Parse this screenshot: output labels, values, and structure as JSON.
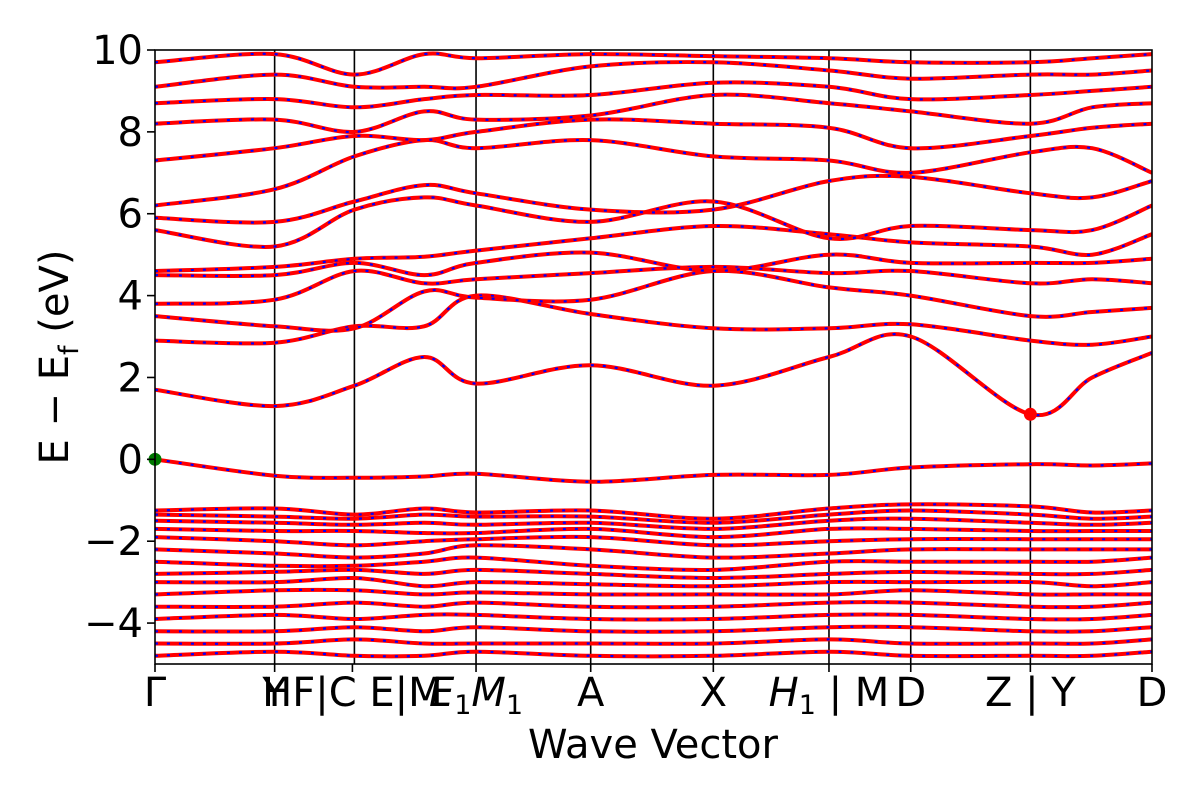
{
  "chart_data": {
    "type": "line",
    "title": "",
    "xlabel": "Wave Vector",
    "ylabel": "E − E",
    "ylabel_sub": "f",
    "ylabel_unit": " (eV)",
    "ylim": [
      -5,
      10
    ],
    "yticks": [
      -4,
      -2,
      0,
      2,
      4,
      6,
      8,
      10
    ],
    "ytick_labels": [
      "−4",
      "−2",
      "0",
      "2",
      "4",
      "6",
      "8",
      "10"
    ],
    "grid": false,
    "legend": "none",
    "colors": {
      "band": "#ff0000",
      "band_dash": "#0000ff",
      "vbm": "#007a00",
      "cbm": "#ff0000"
    },
    "kpoint_ticks": [
      {
        "pos": 0.0,
        "label": "Γ"
      },
      {
        "pos": 0.12,
        "label": "Y"
      },
      {
        "pos": 0.2,
        "label": "H|"
      },
      {
        "pos": 0.205,
        "label": "H"
      },
      {
        "pos": 0.205,
        "label": "C"
      },
      {
        "pos": 0.276,
        "label": "E"
      },
      {
        "pos": 0.322,
        "label": "M"
      },
      {
        "pos": 0.322,
        "label": "E"
      },
      {
        "pos": 0.362,
        "label": "M"
      },
      {
        "pos": 0.437,
        "label": "A"
      },
      {
        "pos": 0.56,
        "label": "X"
      },
      {
        "pos": 0.676,
        "label": "H"
      },
      {
        "pos": 0.676,
        "label": "|"
      },
      {
        "pos": 0.758,
        "label": "M"
      },
      {
        "pos": 0.758,
        "label": "D"
      },
      {
        "pos": 0.878,
        "label": "Z"
      },
      {
        "pos": 0.878,
        "label": "|"
      },
      {
        "pos": 0.878,
        "label": "Y"
      },
      {
        "pos": 1.0,
        "label": "D"
      }
    ],
    "x_tick_text": [
      {
        "pos": 0.0,
        "text": "Γ"
      },
      {
        "pos": 0.12,
        "text": "Y"
      },
      {
        "pos": 0.198,
        "text": "HF|C E|M"
      },
      {
        "pos": 0.322,
        "text": "E",
        "sub": "1",
        "italic": true,
        "sub_label": "M",
        "sub_label_sub": "1"
      },
      {
        "pos": 0.437,
        "text": "A"
      },
      {
        "pos": 0.56,
        "text": "X"
      },
      {
        "pos": 0.676,
        "text": "H",
        "sub": "1",
        "italic": true,
        "suffix": " | M"
      },
      {
        "pos": 0.758,
        "text": "D"
      },
      {
        "pos": 0.878,
        "text": "Z | Y"
      },
      {
        "pos": 1.0,
        "text": "D"
      }
    ],
    "vlines": [
      0.12,
      0.2,
      0.322,
      0.437,
      0.56,
      0.676,
      0.758,
      0.878
    ],
    "markers": [
      {
        "name": "VBM",
        "x": 0.0,
        "y": 0.0,
        "color": "#007a00"
      },
      {
        "name": "CBM",
        "x": 0.878,
        "y": 1.1,
        "color": "#ff0000"
      }
    ],
    "series": [
      {
        "y": [
          0.0,
          -0.4,
          -0.45,
          -0.42,
          -0.35,
          -0.55,
          -0.38,
          -0.38,
          -0.2,
          -0.12,
          -0.15,
          -0.1
        ]
      },
      {
        "y": [
          1.7,
          1.3,
          1.8,
          2.5,
          1.85,
          2.3,
          1.8,
          2.5,
          3.0,
          1.1,
          2.0,
          2.6
        ]
      },
      {
        "y": [
          2.9,
          2.85,
          3.25,
          3.25,
          4.0,
          3.55,
          3.2,
          3.2,
          3.3,
          2.9,
          2.8,
          3.0
        ]
      },
      {
        "y": [
          3.5,
          3.25,
          3.2,
          4.1,
          3.95,
          3.9,
          4.6,
          4.2,
          4.0,
          3.5,
          3.6,
          3.7
        ]
      },
      {
        "y": [
          3.8,
          3.9,
          4.6,
          4.3,
          4.4,
          4.55,
          4.7,
          4.55,
          4.6,
          4.3,
          4.4,
          4.3
        ]
      },
      {
        "y": [
          4.5,
          4.5,
          4.8,
          4.5,
          4.8,
          5.05,
          4.6,
          5.0,
          4.8,
          4.8,
          4.8,
          4.9
        ]
      },
      {
        "y": [
          4.6,
          4.7,
          4.9,
          4.95,
          5.1,
          5.4,
          5.7,
          5.5,
          5.3,
          5.2,
          5.0,
          5.5
        ]
      },
      {
        "y": [
          5.6,
          5.2,
          6.1,
          6.4,
          6.2,
          5.8,
          6.3,
          5.4,
          5.7,
          5.6,
          5.6,
          6.2
        ]
      },
      {
        "y": [
          5.9,
          5.8,
          6.3,
          6.7,
          6.5,
          6.1,
          6.1,
          6.8,
          6.9,
          6.5,
          6.4,
          6.8
        ]
      },
      {
        "y": [
          6.2,
          6.6,
          7.4,
          7.8,
          7.6,
          7.8,
          7.4,
          7.3,
          7.0,
          7.5,
          7.6,
          7.0
        ]
      },
      {
        "y": [
          7.3,
          7.6,
          7.9,
          7.8,
          8.0,
          8.3,
          8.2,
          8.1,
          7.6,
          7.9,
          8.1,
          8.2
        ]
      },
      {
        "y": [
          8.2,
          8.3,
          8.0,
          8.5,
          8.3,
          8.4,
          8.9,
          8.7,
          8.5,
          8.2,
          8.6,
          8.7
        ]
      },
      {
        "y": [
          8.7,
          8.8,
          8.6,
          8.8,
          8.9,
          8.9,
          9.2,
          9.1,
          8.8,
          8.9,
          9.0,
          9.1
        ]
      },
      {
        "y": [
          9.1,
          9.4,
          9.1,
          9.1,
          9.1,
          9.6,
          9.7,
          9.5,
          9.3,
          9.4,
          9.4,
          9.5
        ]
      },
      {
        "y": [
          9.7,
          9.9,
          9.4,
          9.9,
          9.8,
          9.9,
          9.85,
          9.8,
          9.7,
          9.7,
          9.8,
          9.9
        ]
      },
      {
        "y": [
          -1.25,
          -1.2,
          -1.35,
          -1.2,
          -1.3,
          -1.25,
          -1.45,
          -1.2,
          -1.1,
          -1.15,
          -1.3,
          -1.25
        ]
      },
      {
        "y": [
          -1.35,
          -1.4,
          -1.45,
          -1.35,
          -1.4,
          -1.4,
          -1.55,
          -1.35,
          -1.25,
          -1.35,
          -1.45,
          -1.4
        ]
      },
      {
        "y": [
          -1.5,
          -1.55,
          -1.6,
          -1.55,
          -1.6,
          -1.55,
          -1.7,
          -1.5,
          -1.45,
          -1.55,
          -1.6,
          -1.55
        ]
      },
      {
        "y": [
          -1.7,
          -1.75,
          -1.75,
          -1.8,
          -1.8,
          -1.7,
          -1.9,
          -1.7,
          -1.7,
          -1.75,
          -1.75,
          -1.75
        ]
      },
      {
        "y": [
          -1.9,
          -2.0,
          -2.1,
          -2.0,
          -1.95,
          -1.9,
          -2.1,
          -2.0,
          -1.95,
          -1.95,
          -1.95,
          -1.95
        ]
      },
      {
        "y": [
          -2.2,
          -2.3,
          -2.4,
          -2.3,
          -2.1,
          -2.2,
          -2.4,
          -2.3,
          -2.2,
          -2.2,
          -2.2,
          -2.2
        ]
      },
      {
        "y": [
          -2.5,
          -2.6,
          -2.6,
          -2.5,
          -2.4,
          -2.6,
          -2.7,
          -2.5,
          -2.5,
          -2.5,
          -2.5,
          -2.4
        ]
      },
      {
        "y": [
          -2.8,
          -2.75,
          -2.7,
          -2.8,
          -2.7,
          -2.8,
          -2.9,
          -2.8,
          -2.75,
          -2.8,
          -2.8,
          -2.7
        ]
      },
      {
        "y": [
          -3.0,
          -3.0,
          -2.9,
          -3.1,
          -3.0,
          -3.05,
          -3.1,
          -3.0,
          -3.0,
          -3.0,
          -3.1,
          -3.0
        ]
      },
      {
        "y": [
          -3.3,
          -3.2,
          -3.2,
          -3.3,
          -3.25,
          -3.3,
          -3.3,
          -3.3,
          -3.2,
          -3.3,
          -3.3,
          -3.3
        ]
      },
      {
        "y": [
          -3.6,
          -3.6,
          -3.5,
          -3.6,
          -3.5,
          -3.6,
          -3.6,
          -3.5,
          -3.5,
          -3.6,
          -3.6,
          -3.5
        ]
      },
      {
        "y": [
          -3.9,
          -3.8,
          -3.9,
          -3.8,
          -3.8,
          -3.9,
          -3.9,
          -3.8,
          -3.8,
          -3.9,
          -3.9,
          -3.8
        ]
      },
      {
        "y": [
          -4.2,
          -4.2,
          -4.1,
          -4.2,
          -4.1,
          -4.2,
          -4.2,
          -4.1,
          -4.1,
          -4.2,
          -4.2,
          -4.1
        ]
      },
      {
        "y": [
          -4.5,
          -4.5,
          -4.4,
          -4.5,
          -4.5,
          -4.5,
          -4.5,
          -4.4,
          -4.5,
          -4.5,
          -4.5,
          -4.4
        ]
      },
      {
        "y": [
          -4.8,
          -4.7,
          -4.8,
          -4.8,
          -4.7,
          -4.8,
          -4.8,
          -4.7,
          -4.8,
          -4.8,
          -4.8,
          -4.7
        ]
      }
    ],
    "series_x": [
      0.0,
      0.12,
      0.2,
      0.27,
      0.322,
      0.437,
      0.56,
      0.676,
      0.758,
      0.878,
      0.94,
      1.0
    ]
  }
}
